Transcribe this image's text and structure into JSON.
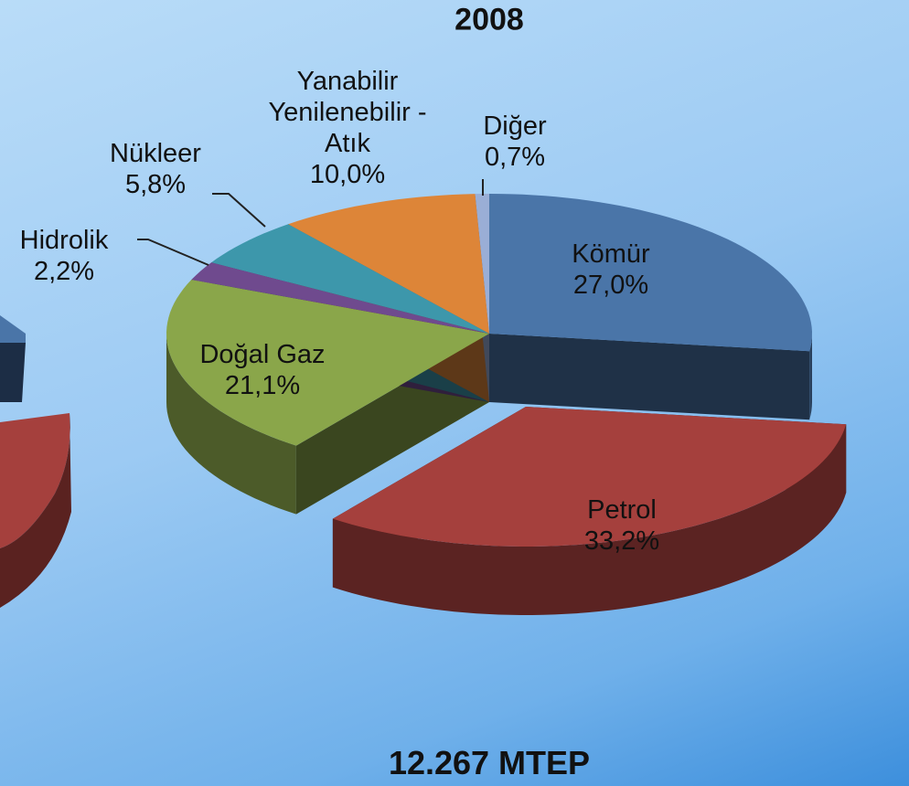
{
  "chart_data": {
    "type": "pie",
    "title": "2008",
    "categories": [
      "Kömür",
      "Petrol",
      "Doğal Gaz",
      "Hidrolik",
      "Nükleer",
      "Yanabilir Yenilenebilir - Atık",
      "Diğer"
    ],
    "values": [
      27.0,
      33.2,
      21.1,
      2.2,
      5.8,
      10.0,
      0.7
    ],
    "value_labels": [
      "27,0%",
      "33,2%",
      "21,1%",
      "2,2%",
      "5,8%",
      "10,0%",
      "0,7%"
    ],
    "colors": [
      "#4a75a8",
      "#a5403d",
      "#8aa64a",
      "#6f4a8e",
      "#3d97ab",
      "#dd8538",
      "#9aaed6"
    ],
    "footer": "12.267 MTEP"
  }
}
